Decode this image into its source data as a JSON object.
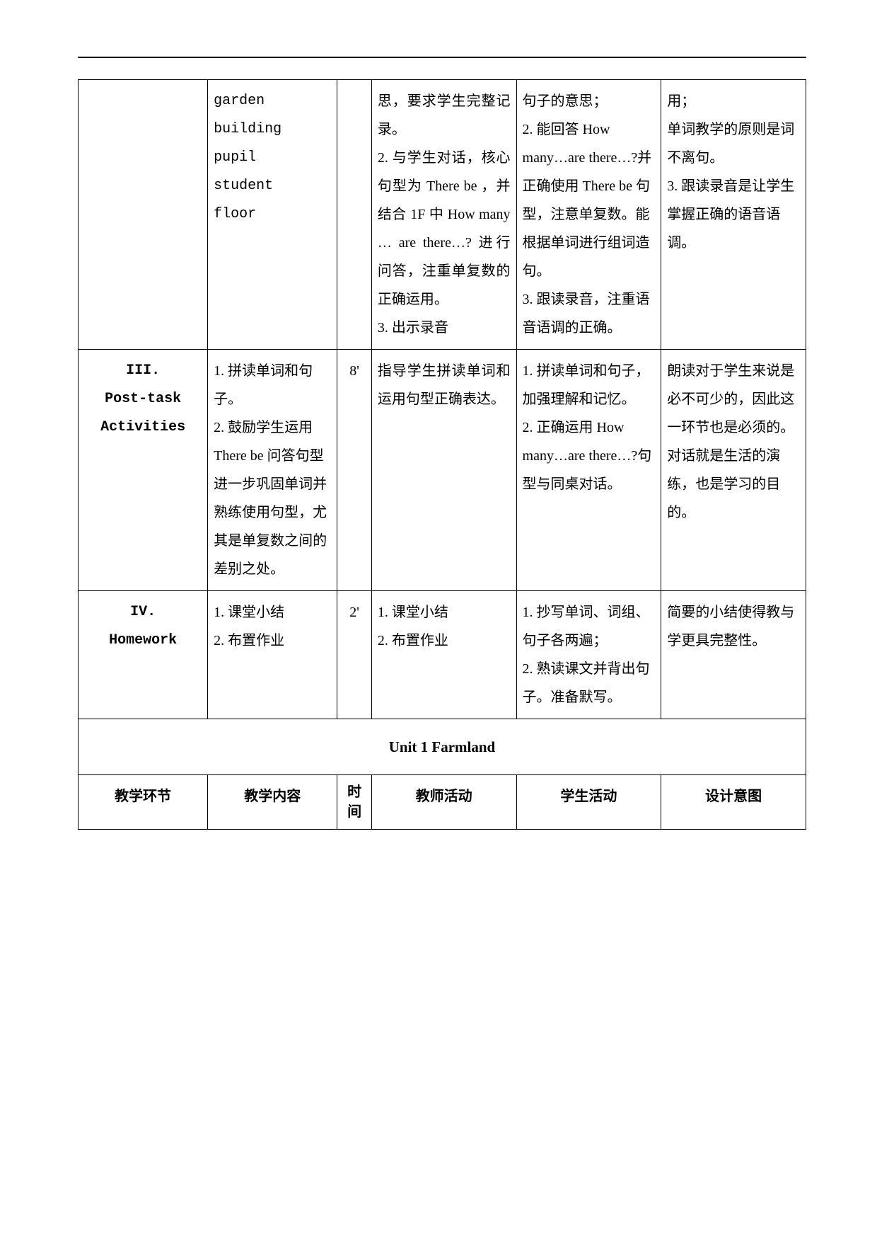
{
  "row1": {
    "content": "garden\nbuilding\npupil\nstudent\nfloor",
    "teacher": "思，要求学生完整记录。\n2. 与学生对话，核心句型为 There be ，并结合 1F 中 How many … are there…? 进行问答，注重单复数的正确运用。\n3. 出示录音",
    "student": "句子的意思；\n2. 能回答 How many…are there…?并正确使用 There be 句型，注意单复数。能根据单词进行组词造句。\n3. 跟读录音，注重语音语调的正确。",
    "purpose": "用；\n单词教学的原则是词不离句。\n3. 跟读录音是让学生掌握正确的语音语调。"
  },
  "row2": {
    "stage": "III.\nPost-task\nActivities",
    "content": "1. 拼读单词和句子。\n2. 鼓励学生运用 There be 问答句型进一步巩固单词并熟练使用句型，尤其是单复数之间的差别之处。",
    "time": "8'",
    "teacher": "指导学生拼读单词和运用句型正确表达。",
    "student": "1. 拼读单词和句子，加强理解和记忆。\n2. 正确运用 How many…are there…?句型与同桌对话。",
    "purpose": "朗读对于学生来说是必不可少的，因此这一环节也是必须的。\n对话就是生活的演练，也是学习的目的。"
  },
  "row3": {
    "stage": "IV.\nHomework",
    "content": "1. 课堂小结\n2. 布置作业",
    "time": "2'",
    "teacher": "1. 课堂小结\n2. 布置作业",
    "student": "1. 抄写单词、词组、句子各两遍；\n2. 熟读课文并背出句子。准备默写。",
    "purpose": "简要的小结使得教与学更具完整性。"
  },
  "sectionTitle": "Unit 1 Farmland",
  "headers": {
    "stage": "教学环节",
    "content": "教学内容",
    "time": "时间",
    "teacher": "教师活动",
    "student": "学生活动",
    "purpose": "设计意图"
  }
}
